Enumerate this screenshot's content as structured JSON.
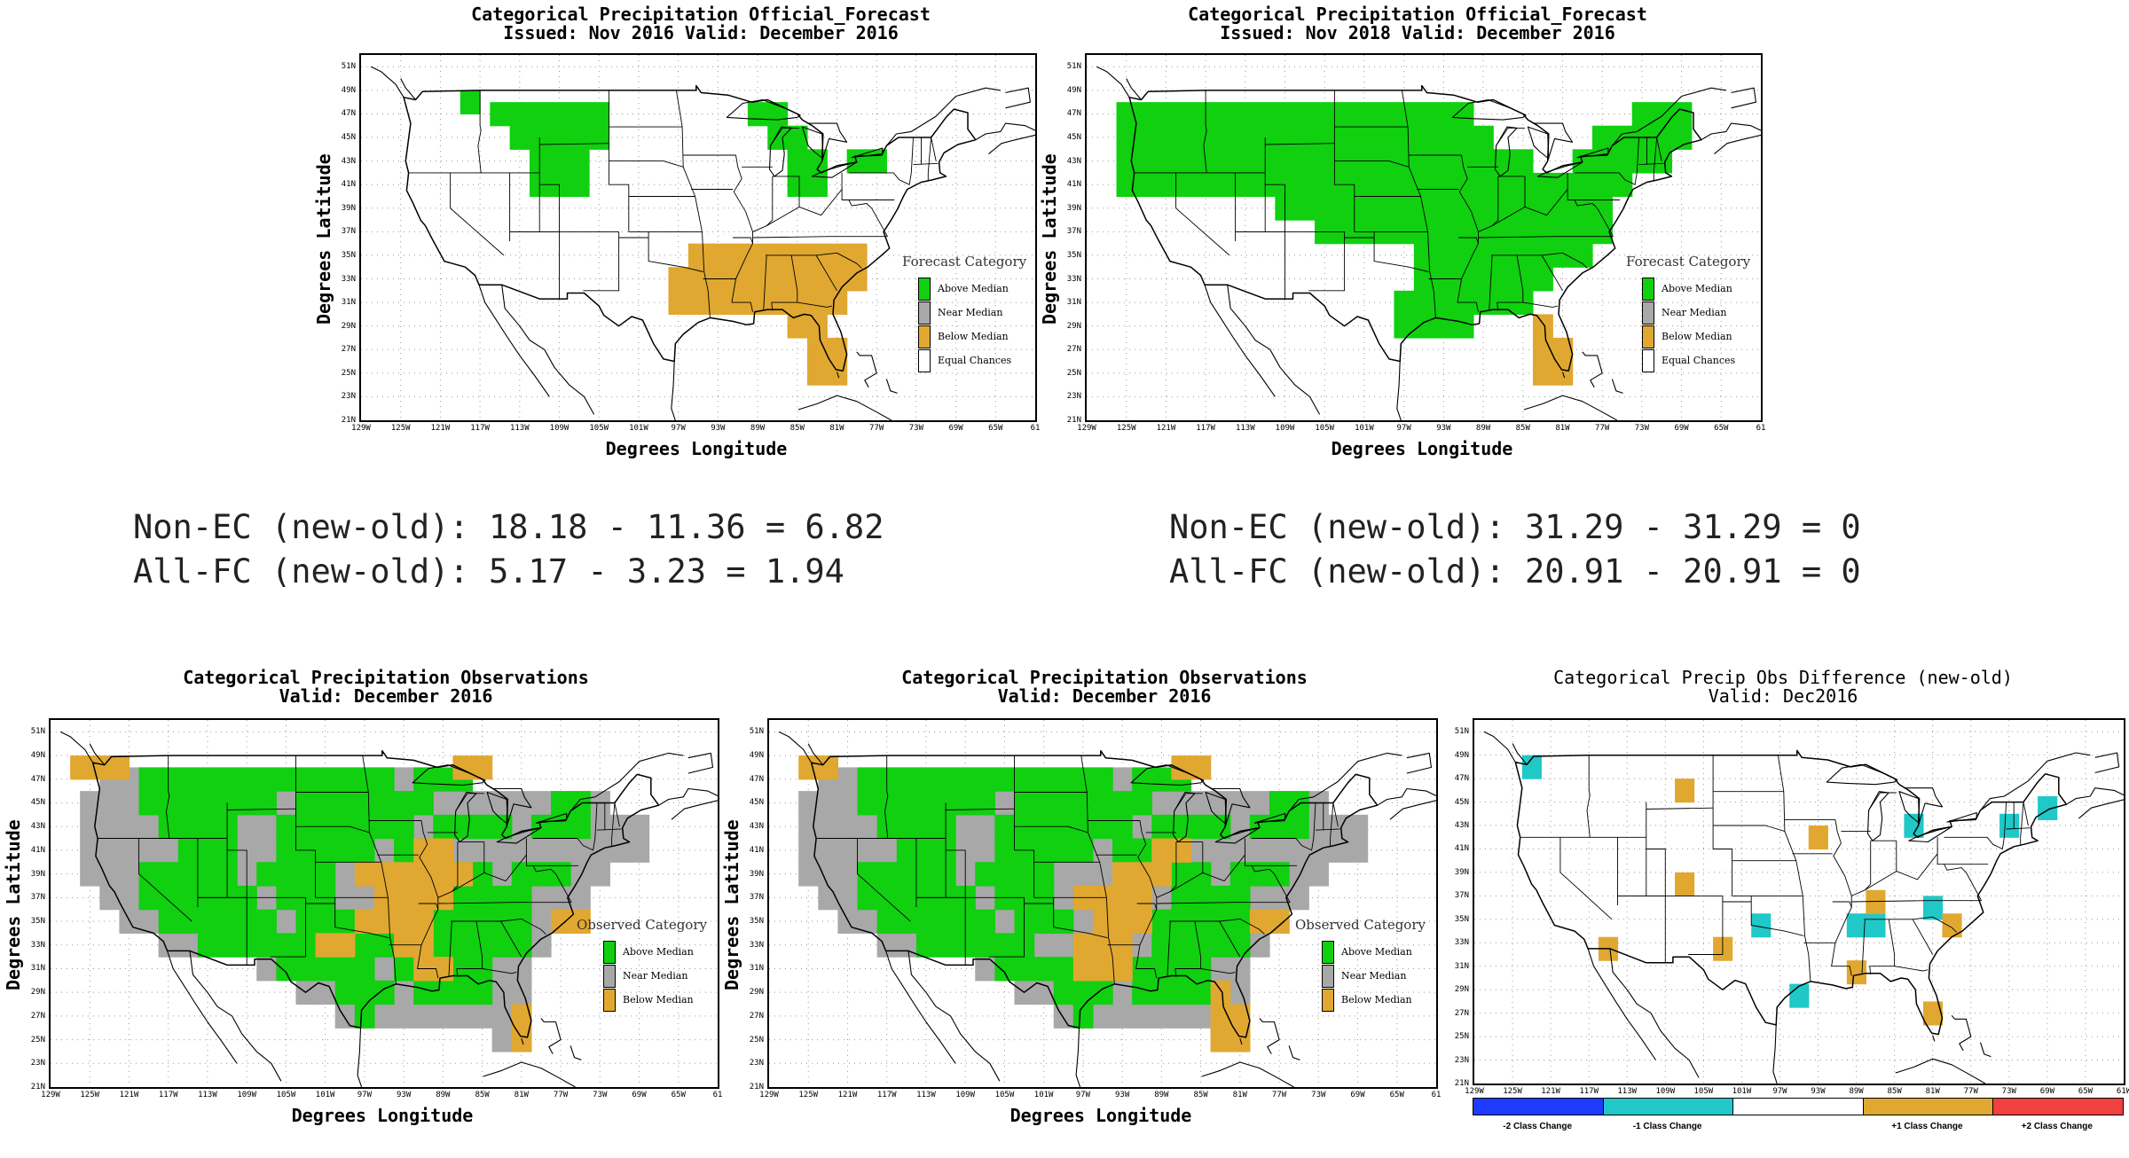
{
  "colors": {
    "above": "#10d010",
    "near": "#a8a8a8",
    "below": "#e0a830",
    "equal": "#ffffff",
    "diff_m2": "#1e3cff",
    "diff_m1": "#20c8c8",
    "diff_p1": "#e0a830",
    "diff_p2": "#f04040"
  },
  "axes": {
    "lat_ticks": [
      "51N",
      "49N",
      "47N",
      "45N",
      "43N",
      "41N",
      "39N",
      "37N",
      "35N",
      "33N",
      "31N",
      "29N",
      "27N",
      "25N",
      "23N",
      "21N"
    ],
    "lon_ticks": [
      "129W",
      "125W",
      "121W",
      "117W",
      "113W",
      "109W",
      "105W",
      "101W",
      "97W",
      "93W",
      "89W",
      "85W",
      "81W",
      "77W",
      "73W",
      "69W",
      "65W",
      "61"
    ],
    "lon_ticks_diff": [
      "129W",
      "125W",
      "121W",
      "117W",
      "113W",
      "109W",
      "105W",
      "101W",
      "97W",
      "93W",
      "89W",
      "85W",
      "81W",
      "77W",
      "73W",
      "69W",
      "65W",
      "61W"
    ],
    "ylabel": "Degrees Latitude",
    "xlabel": "Degrees Longitude"
  },
  "panels": {
    "fc_left": {
      "title1": "Categorical Precipitation Official_Forecast",
      "title2": "Issued: Nov 2016 Valid: December 2016",
      "legend_title": "Forecast Category",
      "legend": [
        "Above Median",
        "Near Median",
        "Below Median",
        "Equal Chances"
      ]
    },
    "fc_right": {
      "title1": "Categorical Precipitation Official_Forecast",
      "title2": "Issued: Nov 2018 Valid: December 2016",
      "legend_title": "Forecast Category",
      "legend": [
        "Above Median",
        "Near Median",
        "Below Median",
        "Equal Chances"
      ]
    },
    "obs_left": {
      "title1": "Categorical Precipitation Observations",
      "title2": "Valid: December 2016",
      "legend_title": "Observed Category",
      "legend": [
        "Above Median",
        "Near Median",
        "Below Median"
      ]
    },
    "obs_mid": {
      "title1": "Categorical Precipitation Observations",
      "title2": "Valid: December 2016",
      "legend_title": "Observed Category",
      "legend": [
        "Above Median",
        "Near Median",
        "Below Median"
      ]
    },
    "diff": {
      "title1": "Categorical Precip Obs Difference (new-old)",
      "title2": "Valid: Dec2016",
      "colorbar": [
        "-2 Class Change",
        "-1 Class Change",
        "+1 Class Change",
        "+2 Class Change"
      ]
    }
  },
  "stats": {
    "left_line1": "Non-EC (new-old): 18.18 - 11.36 = 6.82",
    "left_line2": "All-FC (new-old): 5.17 - 3.23 = 1.94",
    "right_line1": "Non-EC (new-old): 31.29 - 31.29 = 0",
    "right_line2": "All-FC (new-old): 20.91 - 20.91 = 0"
  }
}
